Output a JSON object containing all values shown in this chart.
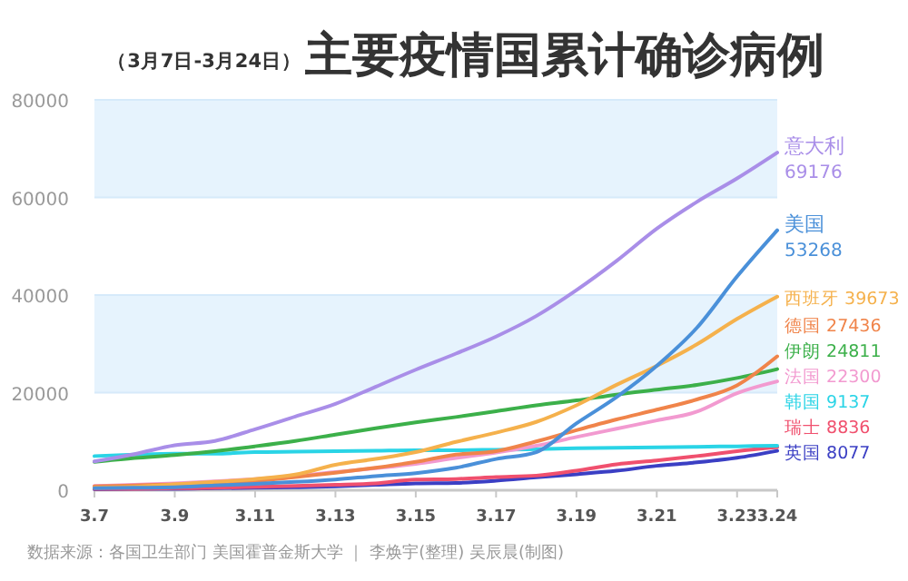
{
  "chart_data": {
    "type": "line",
    "title": "主要疫情国累计确诊病例",
    "subtitle": "（3月7日-3月24日）",
    "x": [
      "--03-07",
      "--03-08",
      "--03-09",
      "--03-10",
      "--03-11",
      "--03-12",
      "--03-13",
      "--03-14",
      "--03-15",
      "--03-16",
      "--03-17",
      "--03-18",
      "--03-19",
      "--03-20",
      "--03-21",
      "--03-22",
      "--03-23",
      "--03-24"
    ],
    "xlim": [
      "--03-07",
      "--03-24"
    ],
    "xticks": [
      {
        "value": "--03-07",
        "label": "3.7"
      },
      {
        "value": "--03-09",
        "label": "3.9"
      },
      {
        "value": "--03-11",
        "label": "3.11"
      },
      {
        "value": "--03-13",
        "label": "3.13"
      },
      {
        "value": "--03-15",
        "label": "3.15"
      },
      {
        "value": "--03-17",
        "label": "3.17"
      },
      {
        "value": "--03-19",
        "label": "3.19"
      },
      {
        "value": "--03-21",
        "label": "3.21"
      },
      {
        "value": "--03-23",
        "label": "3.23"
      },
      {
        "value": "--03-24",
        "label": "3.24"
      }
    ],
    "ylim": [
      0,
      80000
    ],
    "yticks": [
      0,
      20000,
      40000,
      60000,
      80000
    ],
    "grid": "y",
    "legend": false,
    "marker": "none",
    "line_style": "solid",
    "series": [
      {
        "name": "意大利",
        "color": "#a98ee8",
        "values": [
          5900,
          7400,
          9200,
          10100,
          12500,
          15100,
          17700,
          21200,
          24700,
          28000,
          31500,
          35700,
          41000,
          47000,
          53600,
          59100,
          63900,
          69176
        ],
        "value_labels": [
          null,
          null,
          null,
          null,
          null,
          null,
          null,
          null,
          null,
          null,
          null,
          null,
          null,
          null,
          null,
          null,
          null,
          "69176"
        ]
      },
      {
        "name": "美国",
        "color": "#4a90d9",
        "values": [
          400,
          500,
          600,
          1000,
          1300,
          1700,
          2200,
          2900,
          3500,
          4600,
          6400,
          7800,
          13700,
          19100,
          25500,
          33300,
          43800,
          53268
        ],
        "value_labels": [
          null,
          null,
          null,
          null,
          null,
          null,
          null,
          null,
          null,
          null,
          null,
          null,
          null,
          null,
          null,
          null,
          null,
          "53268"
        ]
      },
      {
        "name": "西班牙",
        "color": "#f5b14c",
        "values": [
          500,
          700,
          1200,
          1700,
          2300,
          3200,
          5200,
          6400,
          7800,
          9900,
          11800,
          14000,
          17400,
          21600,
          25500,
          29900,
          35100,
          39673
        ],
        "value_labels": [
          null,
          null,
          null,
          null,
          null,
          null,
          null,
          null,
          null,
          null,
          null,
          null,
          null,
          null,
          null,
          null,
          null,
          "39673"
        ]
      },
      {
        "name": "德国",
        "color": "#f0844a",
        "values": [
          800,
          1000,
          1200,
          1600,
          1900,
          2700,
          3600,
          4600,
          5800,
          7300,
          8000,
          10000,
          12300,
          14500,
          16500,
          18600,
          21500,
          27436
        ],
        "value_labels": [
          null,
          null,
          null,
          null,
          null,
          null,
          null,
          null,
          null,
          null,
          null,
          null,
          null,
          null,
          null,
          null,
          null,
          "27436"
        ]
      },
      {
        "name": "伊朗",
        "color": "#3cb04a",
        "values": [
          5800,
          6600,
          7200,
          8000,
          9000,
          10100,
          11400,
          12700,
          13900,
          15000,
          16200,
          17400,
          18400,
          19600,
          20600,
          21600,
          23000,
          24811
        ],
        "value_labels": [
          null,
          null,
          null,
          null,
          null,
          null,
          null,
          null,
          null,
          null,
          null,
          null,
          null,
          null,
          null,
          null,
          null,
          "24811"
        ]
      },
      {
        "name": "法国",
        "color": "#f29ad0",
        "values": [
          900,
          1100,
          1400,
          1800,
          2300,
          2900,
          3700,
          4500,
          5400,
          6600,
          7700,
          9100,
          10900,
          12600,
          14300,
          16100,
          19900,
          22300
        ],
        "value_labels": [
          null,
          null,
          null,
          null,
          null,
          null,
          null,
          null,
          null,
          null,
          null,
          null,
          null,
          null,
          null,
          null,
          null,
          "22300"
        ]
      },
      {
        "name": "韩国",
        "color": "#2ad4e6",
        "values": [
          7000,
          7300,
          7500,
          7500,
          7800,
          7900,
          8000,
          8100,
          8200,
          8200,
          8300,
          8400,
          8600,
          8700,
          8800,
          8900,
          9000,
          9137
        ],
        "value_labels": [
          null,
          null,
          null,
          null,
          null,
          null,
          null,
          null,
          null,
          null,
          null,
          null,
          null,
          null,
          null,
          null,
          null,
          "9137"
        ]
      },
      {
        "name": "瑞士",
        "color": "#f0506e",
        "values": [
          300,
          300,
          400,
          500,
          700,
          900,
          1100,
          1400,
          2200,
          2300,
          2700,
          3000,
          4000,
          5300,
          6100,
          7000,
          8000,
          8836
        ],
        "value_labels": [
          null,
          null,
          null,
          null,
          null,
          null,
          null,
          null,
          null,
          null,
          null,
          null,
          null,
          null,
          null,
          null,
          null,
          "8836"
        ]
      },
      {
        "name": "英国",
        "color": "#3b3fc4",
        "values": [
          200,
          300,
          300,
          400,
          500,
          600,
          800,
          1100,
          1400,
          1500,
          1950,
          2630,
          3270,
          3980,
          5000,
          5700,
          6650,
          8077
        ],
        "value_labels": [
          null,
          null,
          null,
          null,
          null,
          null,
          null,
          null,
          null,
          null,
          null,
          null,
          null,
          null,
          null,
          null,
          null,
          "8077"
        ]
      }
    ],
    "annotations": [
      "数据来源：各国卫生部门 美国霍普金斯大学 ｜ 李焕宇(整理) 吴辰晨(制图)"
    ]
  }
}
